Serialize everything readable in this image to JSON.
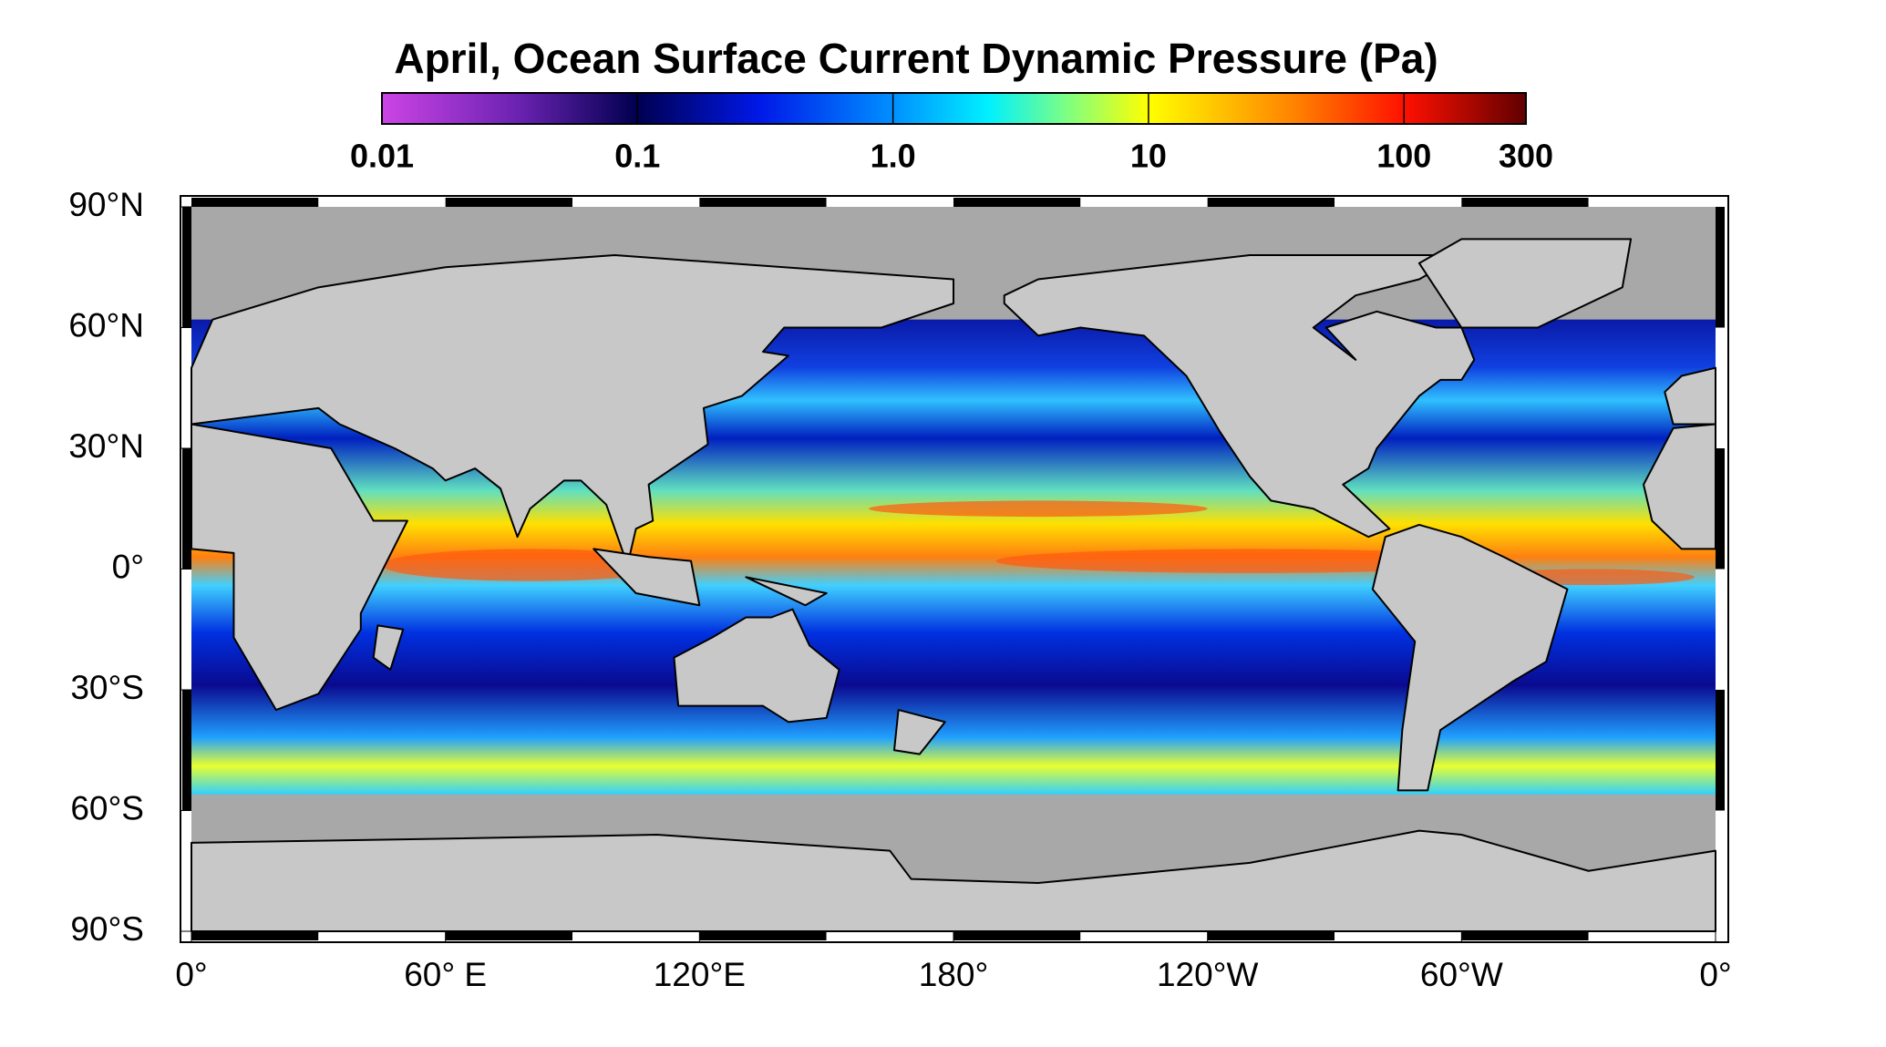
{
  "title": "April, Ocean Surface Current Dynamic Pressure (Pa)",
  "colorbar": {
    "scale": "log",
    "range": [
      0.01,
      300
    ],
    "ticks": [
      0.01,
      0.1,
      {
        "value": 1,
        "label": "1.0"
      },
      10,
      100,
      300
    ]
  },
  "map": {
    "lat_ticks": [
      {
        "value": 90,
        "label": "90°N"
      },
      {
        "value": 60,
        "label": "60°N"
      },
      {
        "value": 30,
        "label": "30°N"
      },
      {
        "value": 0,
        "label": "0°"
      },
      {
        "value": -30,
        "label": "30°S"
      },
      {
        "value": -60,
        "label": "60°S"
      },
      {
        "value": -90,
        "label": "90°S"
      }
    ],
    "lon_ticks": [
      {
        "value": 0,
        "label": "0°"
      },
      {
        "value": 60,
        "label": "60° E"
      },
      {
        "value": 120,
        "label": "120°E"
      },
      {
        "value": 180,
        "label": "180°"
      },
      {
        "value": 240,
        "label": "120°W"
      },
      {
        "value": 300,
        "label": "60°W"
      },
      {
        "value": 360,
        "label": "0°"
      }
    ]
  }
}
